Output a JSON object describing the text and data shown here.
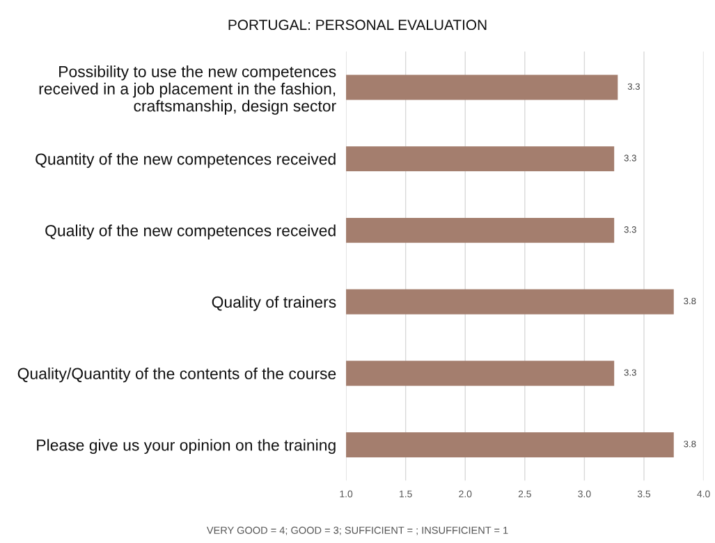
{
  "chart_data": {
    "type": "bar",
    "orientation": "horizontal",
    "title": "PORTUGAL: PERSONAL EVALUATION",
    "categories": [
      "Possibility to use the new competences received in a job placement in the fashion, craftsmanship, design sector",
      "Quantity of the new competences received",
      "Quality of the new competences received",
      "Quality of trainers",
      "Quality/Quantity of the contents of the course",
      "Please give us your opinion on the training"
    ],
    "values": [
      3.28,
      3.25,
      3.25,
      3.75,
      3.25,
      3.75
    ],
    "value_labels": [
      "3.3",
      "3.3",
      "3.3",
      "3.8",
      "3.3",
      "3.8"
    ],
    "color": "#a47e6e",
    "xlim": [
      1.0,
      4.0
    ],
    "xticks": [
      {
        "value": 1.0,
        "label": "1.0"
      },
      {
        "value": 1.5,
        "label": "1.5"
      },
      {
        "value": 2.0,
        "label": "2.0"
      },
      {
        "value": 2.5,
        "label": "2.5"
      },
      {
        "value": 3.0,
        "label": "3.0"
      },
      {
        "value": 3.5,
        "label": "3.5"
      },
      {
        "value": 4.0,
        "label": "4.0"
      }
    ],
    "grid": "x",
    "annotations": [
      "VERY GOOD = 4; GOOD = 3; SUFFICIENT = ; INSUFFICIENT = 1"
    ]
  }
}
